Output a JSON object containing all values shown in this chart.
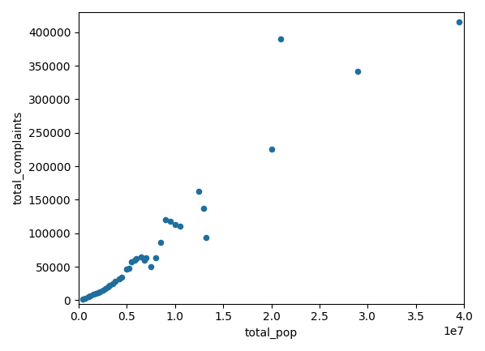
{
  "points": [
    [
      400000,
      1500
    ],
    [
      700000,
      3000
    ],
    [
      1000000,
      5000
    ],
    [
      1200000,
      7000
    ],
    [
      1500000,
      8500
    ],
    [
      1800000,
      10000
    ],
    [
      2000000,
      11000
    ],
    [
      2200000,
      13000
    ],
    [
      2500000,
      15000
    ],
    [
      2800000,
      18000
    ],
    [
      3000000,
      20000
    ],
    [
      3200000,
      22000
    ],
    [
      3500000,
      25000
    ],
    [
      3800000,
      28000
    ],
    [
      4200000,
      32000
    ],
    [
      4500000,
      34000
    ],
    [
      5000000,
      46000
    ],
    [
      5200000,
      48000
    ],
    [
      5500000,
      58000
    ],
    [
      5800000,
      60000
    ],
    [
      6000000,
      62000
    ],
    [
      6500000,
      65000
    ],
    [
      6800000,
      60000
    ],
    [
      7000000,
      64000
    ],
    [
      7500000,
      50000
    ],
    [
      8000000,
      64000
    ],
    [
      8500000,
      86000
    ],
    [
      9000000,
      120000
    ],
    [
      9500000,
      118000
    ],
    [
      10000000,
      113000
    ],
    [
      10500000,
      111000
    ],
    [
      12500000,
      163000
    ],
    [
      13000000,
      137000
    ],
    [
      13200000,
      94000
    ],
    [
      20000000,
      226000
    ],
    [
      21000000,
      390000
    ],
    [
      29000000,
      342000
    ],
    [
      39500000,
      415000
    ]
  ],
  "xlabel": "total_pop",
  "ylabel": "total_complaints",
  "xlim": [
    0,
    40000000
  ],
  "ylim": [
    -5000,
    430000
  ],
  "dot_color": "#1f6e9c",
  "dot_size": 20,
  "background_color": "#ffffff"
}
